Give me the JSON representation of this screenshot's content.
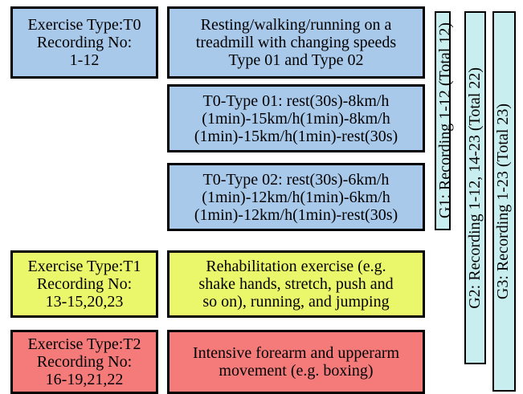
{
  "rows": [
    {
      "left": [
        "Exercise Type:T0",
        "Recording No:",
        "1-12"
      ],
      "right": [
        [
          "Resting/walking/running on a",
          "treadmill with changing speeds",
          "Type 01 and Type 02"
        ],
        [
          "T0-Type 01: rest(30s)-8km/h",
          "(1min)-15km/h(1min)-8km/h",
          "(1min)-15km/h(1min)-rest(30s)"
        ],
        [
          "T0-Type 02: rest(30s)-6km/h",
          "(1min)-12km/h(1min)-6km/h",
          "(1min)-12km/h(1min)-rest(30s)"
        ]
      ]
    },
    {
      "left": [
        "Exercise Type:T1",
        "Recording No:",
        "13-15,20,23"
      ],
      "right": [
        [
          "Rehabilitation exercise (e.g.",
          "shake hands, stretch, push and",
          "so on), running, and jumping"
        ]
      ]
    },
    {
      "left": [
        "Exercise Type:T2",
        "Recording No:",
        "16-19,21,22"
      ],
      "right": [
        [
          "Intensive forearm and upperarm",
          "movement (e.g. boxing)"
        ]
      ]
    }
  ],
  "groups": [
    "G1: Recording 1-12 (Total 12)",
    "G2: Recording 1-12, 14-23 (Total 22)",
    "G3: Recording 1-23 (Total 23)"
  ]
}
